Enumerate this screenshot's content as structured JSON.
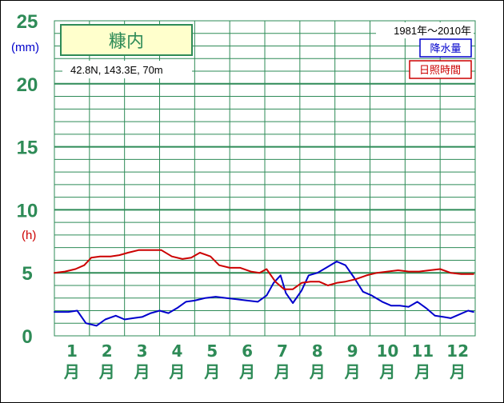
{
  "chart_data": {
    "type": "line",
    "station": "糠内",
    "location": "42.8N,  143.3E,  70m",
    "period": "1981年～2010年",
    "units": {
      "precip": "(mm)",
      "sunshine": "(h)"
    },
    "y_ticks": [
      "0",
      "5",
      "10",
      "15",
      "20",
      "25"
    ],
    "ylim": [
      0,
      25
    ],
    "months": [
      "1",
      "2",
      "3",
      "4",
      "5",
      "6",
      "7",
      "8",
      "9",
      "10",
      "11",
      "12"
    ],
    "month_suffix": "月",
    "legend_position": "top-right",
    "grid": true,
    "series": [
      {
        "name": "降水量",
        "color": "#0000cc",
        "x": [
          0.0,
          0.4,
          0.65,
          0.9,
          1.2,
          1.45,
          1.75,
          2.0,
          2.25,
          2.5,
          2.75,
          3.0,
          3.25,
          3.5,
          3.75,
          4.0,
          4.3,
          4.6,
          4.9,
          5.2,
          5.5,
          5.8,
          6.05,
          6.25,
          6.45,
          6.6,
          6.8,
          7.05,
          7.25,
          7.5,
          7.75,
          8.05,
          8.3,
          8.55,
          8.8,
          9.05,
          9.35,
          9.6,
          9.85,
          10.1,
          10.35,
          10.6,
          10.85,
          11.1,
          11.3,
          11.55,
          11.8,
          11.95
        ],
        "values": [
          1.9,
          1.9,
          2.0,
          1.0,
          0.8,
          1.3,
          1.6,
          1.3,
          1.4,
          1.5,
          1.8,
          2.0,
          1.8,
          2.2,
          2.7,
          2.8,
          3.0,
          3.1,
          3.0,
          2.9,
          2.8,
          2.7,
          3.2,
          4.2,
          4.8,
          3.4,
          2.6,
          3.6,
          4.8,
          5.0,
          5.4,
          5.9,
          5.6,
          4.6,
          3.5,
          3.2,
          2.7,
          2.4,
          2.4,
          2.3,
          2.7,
          2.2,
          1.6,
          1.5,
          1.4,
          1.7,
          2.0,
          1.9
        ]
      },
      {
        "name": "日照時間",
        "color": "#cc0000",
        "x": [
          0.0,
          0.3,
          0.6,
          0.85,
          1.05,
          1.3,
          1.6,
          1.85,
          2.1,
          2.4,
          2.75,
          3.05,
          3.35,
          3.65,
          3.9,
          4.15,
          4.45,
          4.7,
          5.0,
          5.3,
          5.6,
          5.85,
          6.05,
          6.3,
          6.55,
          6.8,
          7.05,
          7.3,
          7.55,
          7.8,
          8.05,
          8.3,
          8.6,
          8.9,
          9.2,
          9.5,
          9.8,
          10.1,
          10.4,
          10.7,
          11.0,
          11.3,
          11.6,
          11.95
        ],
        "values": [
          5.0,
          5.1,
          5.3,
          5.6,
          6.2,
          6.3,
          6.3,
          6.4,
          6.6,
          6.8,
          6.8,
          6.8,
          6.3,
          6.1,
          6.2,
          6.6,
          6.3,
          5.6,
          5.4,
          5.4,
          5.1,
          5.0,
          5.3,
          4.3,
          3.7,
          3.7,
          4.2,
          4.3,
          4.3,
          4.0,
          4.2,
          4.3,
          4.5,
          4.8,
          5.0,
          5.1,
          5.2,
          5.1,
          5.1,
          5.2,
          5.3,
          5.0,
          4.9,
          4.9
        ]
      }
    ]
  }
}
